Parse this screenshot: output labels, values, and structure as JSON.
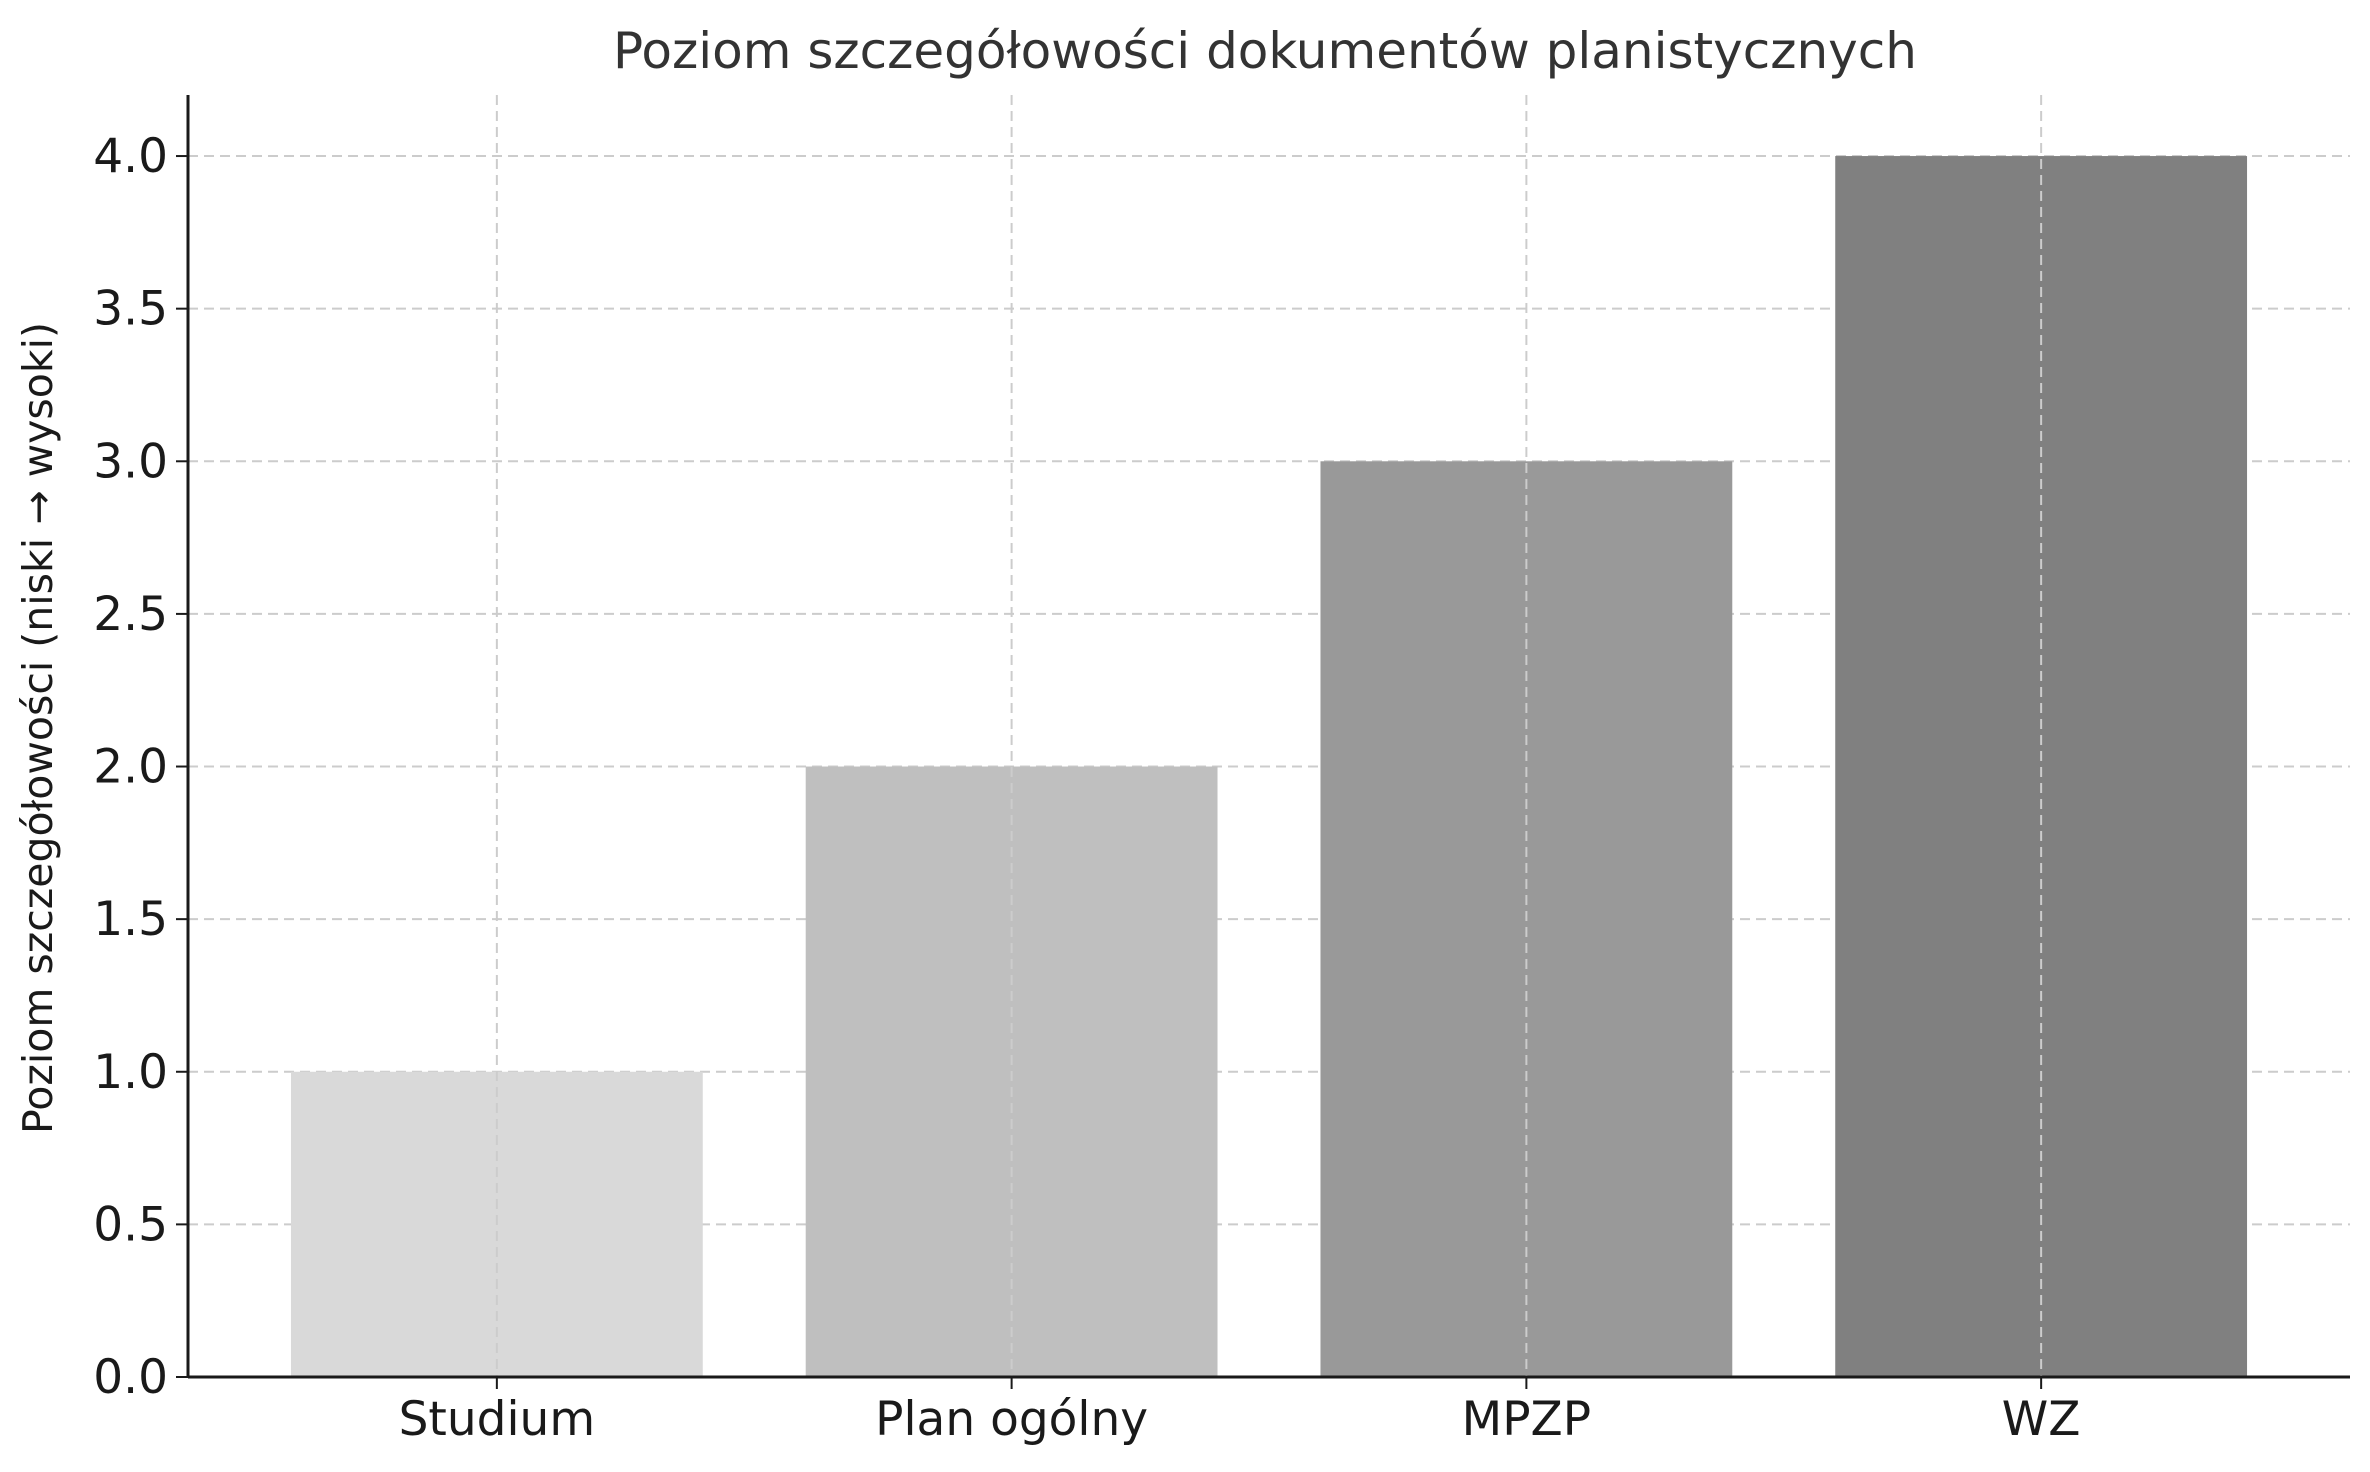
{
  "chart_data": {
    "type": "bar",
    "title": "Poziom szczegółowości dokumentów planistycznych",
    "xlabel": "",
    "ylabel": "Poziom szczegółowości (niski → wysoki)",
    "categories": [
      "Studium",
      "Plan ogólny",
      "MPZP",
      "WZ"
    ],
    "values": [
      1,
      2,
      3,
      4
    ],
    "bar_colors": [
      "#d9d9d9",
      "#bfbfbf",
      "#999999",
      "#808080"
    ],
    "ylim": [
      0,
      4.2
    ],
    "yticks": [
      "0.0",
      "0.5",
      "1.0",
      "1.5",
      "2.0",
      "2.5",
      "3.0",
      "3.5",
      "4.0"
    ],
    "grid": true,
    "legend": "none"
  }
}
